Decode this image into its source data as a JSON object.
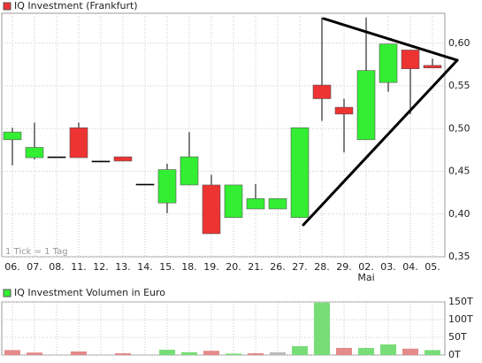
{
  "chart_data": [
    {
      "type": "candlestick",
      "title": "IQ Investment (Frankfurt)",
      "annotation": "1 Tick = 1 Tag",
      "categories": [
        "06.",
        "07.",
        "08.",
        "11.",
        "12.",
        "13.",
        "14.",
        "15.",
        "18.",
        "19.",
        "20.",
        "21.",
        "26.",
        "27.",
        "28.",
        "29.",
        "02.",
        "03.",
        "04.",
        "05."
      ],
      "month_labels": [
        null,
        null,
        null,
        null,
        null,
        null,
        null,
        null,
        null,
        null,
        null,
        null,
        null,
        null,
        null,
        null,
        "Mai",
        null,
        null,
        null
      ],
      "open": [
        0.487,
        0.466,
        0.467,
        0.501,
        0.462,
        0.467,
        0.435,
        0.413,
        0.434,
        0.434,
        0.396,
        0.406,
        0.406,
        0.396,
        0.551,
        0.525,
        0.487,
        0.554,
        0.592,
        0.574
      ],
      "high": [
        0.501,
        0.507,
        0.467,
        0.507,
        0.462,
        0.467,
        0.435,
        0.459,
        0.496,
        0.446,
        0.434,
        0.435,
        0.418,
        0.501,
        0.63,
        0.535,
        0.63,
        0.599,
        0.592,
        0.582
      ],
      "low": [
        0.457,
        0.464,
        0.467,
        0.466,
        0.462,
        0.462,
        0.435,
        0.401,
        0.434,
        0.377,
        0.396,
        0.406,
        0.406,
        0.396,
        0.509,
        0.472,
        0.487,
        0.543,
        0.517,
        0.571
      ],
      "close": [
        0.496,
        0.478,
        0.467,
        0.466,
        0.462,
        0.462,
        0.435,
        0.452,
        0.467,
        0.377,
        0.434,
        0.418,
        0.418,
        0.501,
        0.535,
        0.517,
        0.568,
        0.599,
        0.57,
        0.571
      ],
      "up_color": "#33ee33",
      "down_color": "#ee3333",
      "flat_color": "#000000",
      "ylim": [
        0.35,
        0.635
      ],
      "yticks": [
        {
          "value": 0.35,
          "label": "0,35"
        },
        {
          "value": 0.4,
          "label": "0,40"
        },
        {
          "value": 0.45,
          "label": "0,45"
        },
        {
          "value": 0.5,
          "label": "0,50"
        },
        {
          "value": 0.55,
          "label": "0,55"
        },
        {
          "value": 0.6,
          "label": "0,60"
        }
      ],
      "grid": true
    },
    {
      "type": "bar",
      "title": "IQ Investment Volumen in Euro",
      "values": [
        14,
        7,
        0,
        10,
        0,
        5,
        0,
        15,
        8,
        12,
        4,
        5,
        8,
        25,
        148,
        20,
        20,
        30,
        18,
        14
      ],
      "colors": [
        "#e48a8a",
        "#e48a8a",
        "#e48a8a",
        "#e48a8a",
        "#e48a8a",
        "#e48a8a",
        "#e48a8a",
        "#77dd77",
        "#77dd77",
        "#e48a8a",
        "#77dd77",
        "#e48a8a",
        "#bbbbbb",
        "#77dd77",
        "#77dd77",
        "#e48a8a",
        "#77dd77",
        "#77dd77",
        "#e48a8a",
        "#77dd77"
      ],
      "ylim": [
        0,
        150
      ],
      "yticks": [
        {
          "value": 0,
          "label": "0T"
        },
        {
          "value": 50,
          "label": "50T"
        },
        {
          "value": 100,
          "label": "100T"
        },
        {
          "value": 150,
          "label": "150T"
        }
      ],
      "grid": true
    }
  ]
}
